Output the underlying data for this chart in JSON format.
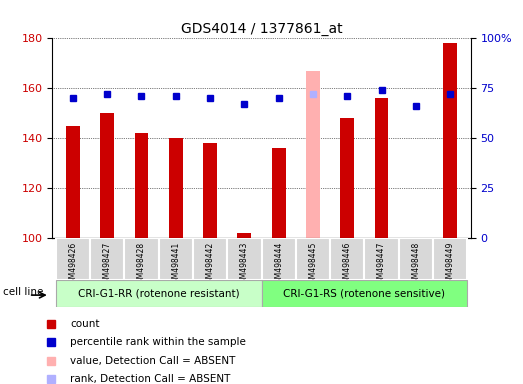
{
  "title": "GDS4014 / 1377861_at",
  "samples": [
    "GSM498426",
    "GSM498427",
    "GSM498428",
    "GSM498441",
    "GSM498442",
    "GSM498443",
    "GSM498444",
    "GSM498445",
    "GSM498446",
    "GSM498447",
    "GSM498448",
    "GSM498449"
  ],
  "counts": [
    145,
    150,
    142,
    140,
    138,
    102,
    136,
    167,
    148,
    156,
    100,
    178
  ],
  "ranks": [
    70,
    72,
    71,
    71,
    70,
    67,
    70,
    72,
    71,
    74,
    66,
    72
  ],
  "absent": [
    false,
    false,
    false,
    false,
    false,
    false,
    false,
    true,
    false,
    false,
    false,
    false
  ],
  "group1_label": "CRI-G1-RR (rotenone resistant)",
  "group2_label": "CRI-G1-RS (rotenone sensitive)",
  "group1_count": 6,
  "group2_count": 6,
  "ylim_left": [
    100,
    180
  ],
  "ylim_right": [
    0,
    100
  ],
  "bar_color": "#cc0000",
  "bar_color_absent": "#ffb0b0",
  "dot_color": "#0000cc",
  "dot_color_absent": "#b0b0ff",
  "group1_bg": "#c8ffc8",
  "group2_bg": "#80ff80",
  "sample_bg": "#d8d8d8",
  "ylabel_left": "",
  "ylabel_right": "",
  "left_ticks": [
    100,
    120,
    140,
    160,
    180
  ],
  "right_ticks": [
    0,
    25,
    50,
    75,
    100
  ],
  "right_tick_labels": [
    "0",
    "25",
    "50",
    "75",
    "100%"
  ]
}
